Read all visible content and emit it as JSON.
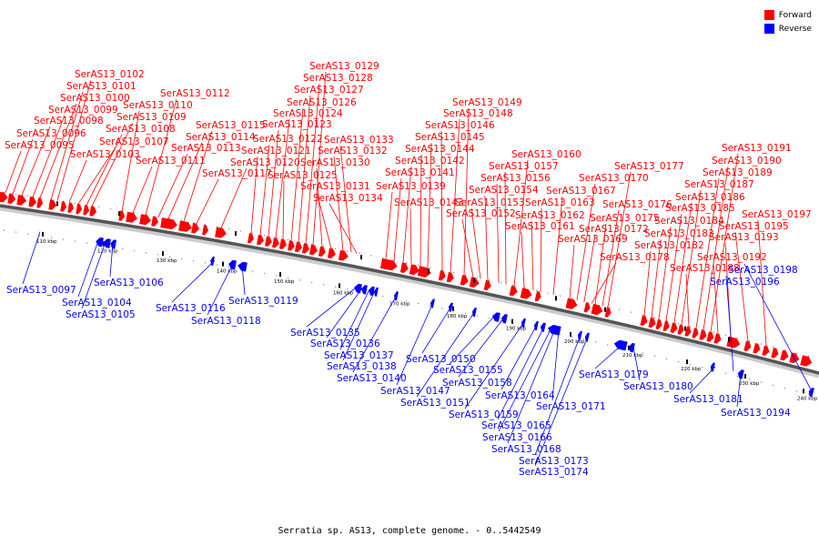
{
  "legend": {
    "forward_label": "Forward",
    "reverse_label": "Reverse",
    "forward_color": "#ff0000",
    "reverse_color": "#0000ff"
  },
  "caption": "Serratia sp. AS13, complete genome. - 0..5442549",
  "scale_ticks": [
    "110 kbp",
    "120 kbp",
    "130 kbp",
    "140 kbp",
    "150 kbp",
    "160 kbp",
    "170 kbp",
    "180 kbp",
    "190 kbp",
    "200 kbp",
    "210 kbp",
    "220 kbp",
    "230 kbp",
    "240 kbp"
  ],
  "forward_genes": [
    "SerAS13_0095",
    "SerAS13_0096",
    "SerAS13_0098",
    "SerAS13_0099",
    "SerAS13_0100",
    "SerAS13_0101",
    "SerAS13_0102",
    "SerAS13_0103",
    "SerAS13_0107",
    "SerAS13_0108",
    "SerAS13_0109",
    "SerAS13_0110",
    "SerAS13_0111",
    "SerAS13_0112",
    "SerAS13_0113",
    "SerAS13_0114",
    "SerAS13_0115",
    "SerAS13_0117",
    "SerAS13_0120",
    "SerAS13_0121",
    "SerAS13_0122",
    "SerAS13_0123",
    "SerAS13_0124",
    "SerAS13_0125",
    "SerAS13_0126",
    "SerAS13_0127",
    "SerAS13_0128",
    "SerAS13_0129",
    "SerAS13_0130",
    "SerAS13_0131",
    "SerAS13_0132",
    "SerAS13_0133",
    "SerAS13_0134",
    "SerAS13_0139",
    "SerAS13_0141",
    "SerAS13_0142",
    "SerAS13_0143",
    "SerAS13_0144",
    "SerAS13_0145",
    "SerAS13_0146",
    "SerAS13_0148",
    "SerAS13_0149",
    "SerAS13_0152",
    "SerAS13_0153",
    "SerAS13_0154",
    "SerAS13_0156",
    "SerAS13_0157",
    "SerAS13_0160",
    "SerAS13_0161",
    "SerAS13_0162",
    "SerAS13_0163",
    "SerAS13_0167",
    "SerAS13_0169",
    "SerAS13_0170",
    "SerAS13_0172",
    "SerAS13_0175",
    "SerAS13_0176",
    "SerAS13_0177",
    "SerAS13_0178",
    "SerAS13_0182",
    "SerAS13_0183",
    "SerAS13_0184",
    "SerAS13_0185",
    "SerAS13_0186",
    "SerAS13_0187",
    "SerAS13_0188",
    "SerAS13_0189",
    "SerAS13_0190",
    "SerAS13_0191",
    "SerAS13_0192",
    "SerAS13_0193",
    "SerAS13_0195",
    "SerAS13_0197"
  ],
  "reverse_genes": [
    "SerAS13_0097",
    "SerAS13_0104",
    "SerAS13_0105",
    "SerAS13_0106",
    "SerAS13_0116",
    "SerAS13_0118",
    "SerAS13_0119",
    "SerAS13_0135",
    "SerAS13_0136",
    "SerAS13_0137",
    "SerAS13_0138",
    "SerAS13_0140",
    "SerAS13_0147",
    "SerAS13_0150",
    "SerAS13_0151",
    "SerAS13_0155",
    "SerAS13_0158",
    "SerAS13_0159",
    "SerAS13_0164",
    "SerAS13_0165",
    "SerAS13_0166",
    "SerAS13_0168",
    "SerAS13_0171",
    "SerAS13_0173",
    "SerAS13_0174",
    "SerAS13_0179",
    "SerAS13_0180",
    "SerAS13_0181",
    "SerAS13_0194",
    "SerAS13_0196",
    "SerAS13_0198"
  ]
}
